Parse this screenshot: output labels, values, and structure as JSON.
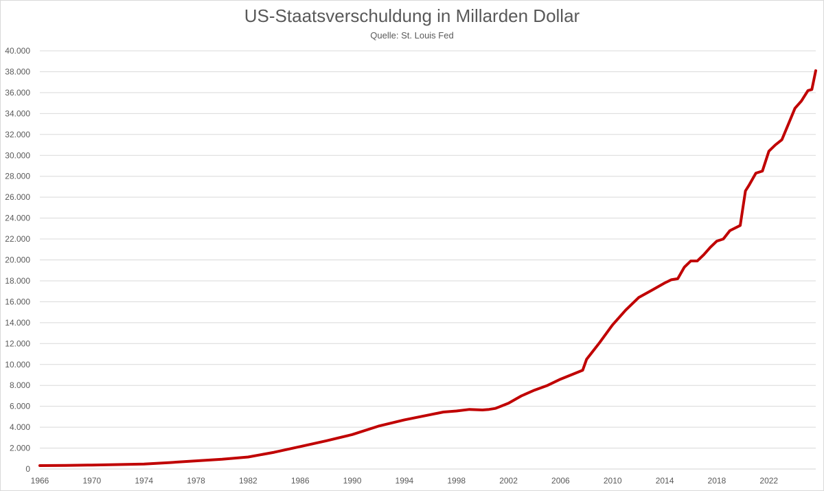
{
  "colors": {
    "line": "#c00000",
    "grid": "#d9d9d9",
    "text": "#595959"
  },
  "chart_data": {
    "type": "line",
    "title": "US-Staatsverschuldung in Millarden Dollar",
    "subtitle": "Quelle: St. Louis Fed",
    "xlabel": "",
    "ylabel": "",
    "xlim": [
      1966,
      2025.6
    ],
    "ylim": [
      0,
      40000
    ],
    "grid": "horizontal",
    "legend": "none",
    "x_ticks": [
      1966,
      1970,
      1974,
      1978,
      1982,
      1986,
      1990,
      1994,
      1998,
      2002,
      2006,
      2010,
      2014,
      2018,
      2022
    ],
    "x_tick_labels": [
      "1966",
      "1970",
      "1974",
      "1978",
      "1982",
      "1986",
      "1990",
      "1994",
      "1998",
      "2002",
      "2006",
      "2010",
      "2014",
      "2018",
      "2022"
    ],
    "y_ticks": [
      0,
      2000,
      4000,
      6000,
      8000,
      10000,
      12000,
      14000,
      16000,
      18000,
      20000,
      22000,
      24000,
      26000,
      28000,
      30000,
      32000,
      34000,
      36000,
      38000,
      40000
    ],
    "y_tick_labels": [
      "0",
      "2.000",
      "4.000",
      "6.000",
      "8.000",
      "10.000",
      "12.000",
      "14.000",
      "16.000",
      "18.000",
      "20.000",
      "22.000",
      "24.000",
      "26.000",
      "28.000",
      "30.000",
      "32.000",
      "34.000",
      "36.000",
      "38.000",
      "40.000"
    ],
    "series": [
      {
        "x": [
          1966,
          1968,
          1970,
          1972,
          1974,
          1976,
          1978,
          1980,
          1982,
          1984,
          1986,
          1988,
          1990,
          1992,
          1994,
          1996,
          1997,
          1998,
          1999,
          2000,
          2000.5,
          2001,
          2002,
          2003,
          2004,
          2005,
          2006,
          2007,
          2007.7,
          2008,
          2008.5,
          2009,
          2010,
          2011,
          2012,
          2013,
          2014,
          2014.5,
          2015,
          2015.5,
          2016,
          2016.5,
          2017,
          2017.5,
          2018,
          2018.5,
          2019,
          2019.8,
          2020.2,
          2020.5,
          2021,
          2021.5,
          2022,
          2022.5,
          2023,
          2023.5,
          2024,
          2024.5,
          2025,
          2025.3,
          2025.6
        ],
        "y": [
          330,
          350,
          380,
          430,
          480,
          620,
          780,
          930,
          1150,
          1600,
          2150,
          2700,
          3300,
          4100,
          4700,
          5200,
          5450,
          5550,
          5700,
          5650,
          5700,
          5800,
          6300,
          7000,
          7550,
          8000,
          8600,
          9100,
          9450,
          10500,
          11300,
          12100,
          13800,
          15200,
          16400,
          17100,
          17800,
          18100,
          18200,
          19300,
          19900,
          19900,
          20500,
          21200,
          21800,
          22000,
          22800,
          23300,
          26600,
          27200,
          28300,
          28500,
          30400,
          31000,
          31500,
          33000,
          34500,
          35200,
          36200,
          36300,
          38100
        ]
      }
    ]
  }
}
